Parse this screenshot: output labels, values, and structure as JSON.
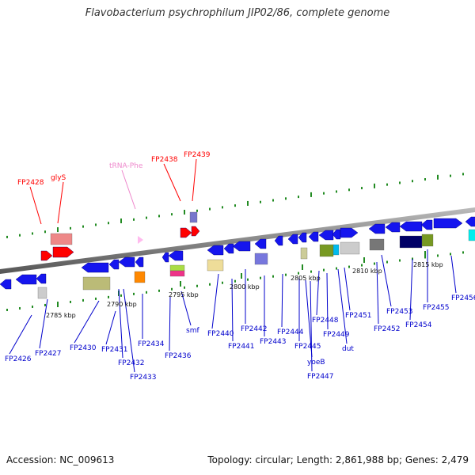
{
  "title": "Flavobacterium psychrophilum JIP02/86, complete genome",
  "accession": "Accession: NC_009613",
  "topology": "Topology: circular; Length: 2,861,988 bp; Genes: 2,479",
  "colors": {
    "forward": "#ff0000",
    "reverse": "#0000cc",
    "trna": "#ee88cc",
    "gene_blue": "#1515ee",
    "backbone": "#888888",
    "tick": "#228B22"
  },
  "tick_labels": [
    "2785 kbp",
    "2790 kbp",
    "2795 kbp",
    "2800 kbp",
    "2805 kbp",
    "2810 kbp",
    "2815 kbp"
  ],
  "top_labels": [
    "FP2428",
    "glyS",
    "tRNA-Phe",
    "FP2438",
    "FP2439"
  ],
  "bottom_labels": [
    "FP2426",
    "FP2427",
    "FP2430",
    "FP2431",
    "FP2432",
    "FP2433",
    "FP2434",
    "FP2436",
    "smf",
    "FP2440",
    "FP2441",
    "FP2442",
    "FP2443",
    "FP2444",
    "FP2445",
    "yoeB",
    "FP2447",
    "FP2448",
    "FP2449",
    "dut",
    "FP2451",
    "FP2452",
    "FP2453",
    "FP2454",
    "FP2455",
    "FP2456"
  ]
}
